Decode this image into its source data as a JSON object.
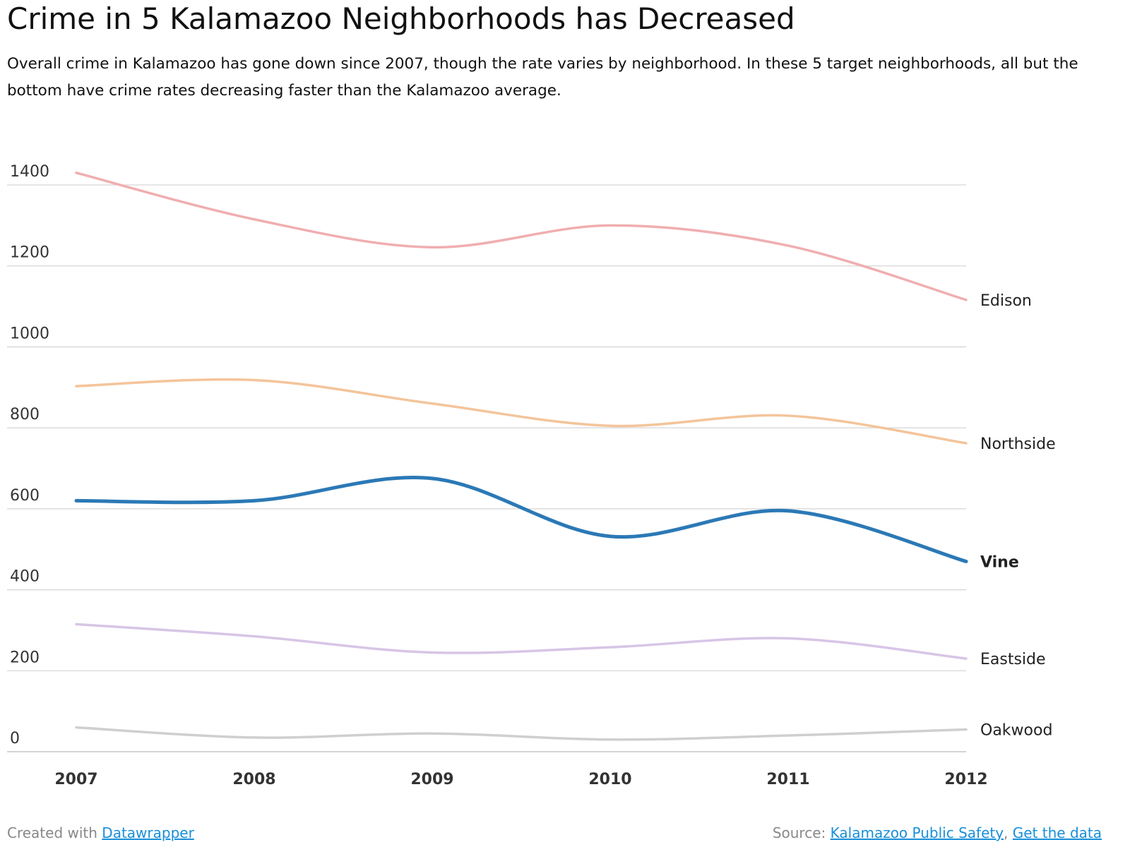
{
  "title": "Crime in 5 Kalamazoo Neighborhoods has Decreased",
  "subtitle": "Overall crime in Kalamazoo has gone down since 2007, though the rate varies by neighborhood. In these 5 target neighborhoods, all but the bottom have crime rates decreasing faster than the Kalamazoo average.",
  "footer": {
    "created_prefix": "Created with ",
    "created_link": "Datawrapper",
    "source_prefix": "Source: ",
    "source_link": "Kalamazoo Public Safety",
    "separator": ", ",
    "data_link": "Get the data"
  },
  "chart_data": {
    "type": "line",
    "x": [
      "2007",
      "2008",
      "2009",
      "2010",
      "2011",
      "2012"
    ],
    "ylim": [
      0,
      1400
    ],
    "yticks": [
      0,
      200,
      400,
      600,
      800,
      1000,
      1200,
      1400
    ],
    "grid": true,
    "legend": "direct labels at line ends (right)",
    "highlight": "Vine",
    "series": [
      {
        "name": "Edison",
        "color": "#f0aeb0",
        "values": [
          1430,
          1315,
          1246,
          1300,
          1250,
          1116
        ]
      },
      {
        "name": "Northside",
        "color": "#f4c49a",
        "values": [
          903,
          918,
          860,
          805,
          830,
          762
        ]
      },
      {
        "name": "Vine",
        "color": "#2b79b6",
        "values": [
          620,
          620,
          675,
          532,
          595,
          470
        ]
      },
      {
        "name": "Eastside",
        "color": "#d8c5e6",
        "values": [
          315,
          285,
          245,
          258,
          280,
          230
        ]
      },
      {
        "name": "Oakwood",
        "color": "#cfcfcf",
        "values": [
          60,
          35,
          45,
          30,
          40,
          55
        ]
      }
    ]
  }
}
